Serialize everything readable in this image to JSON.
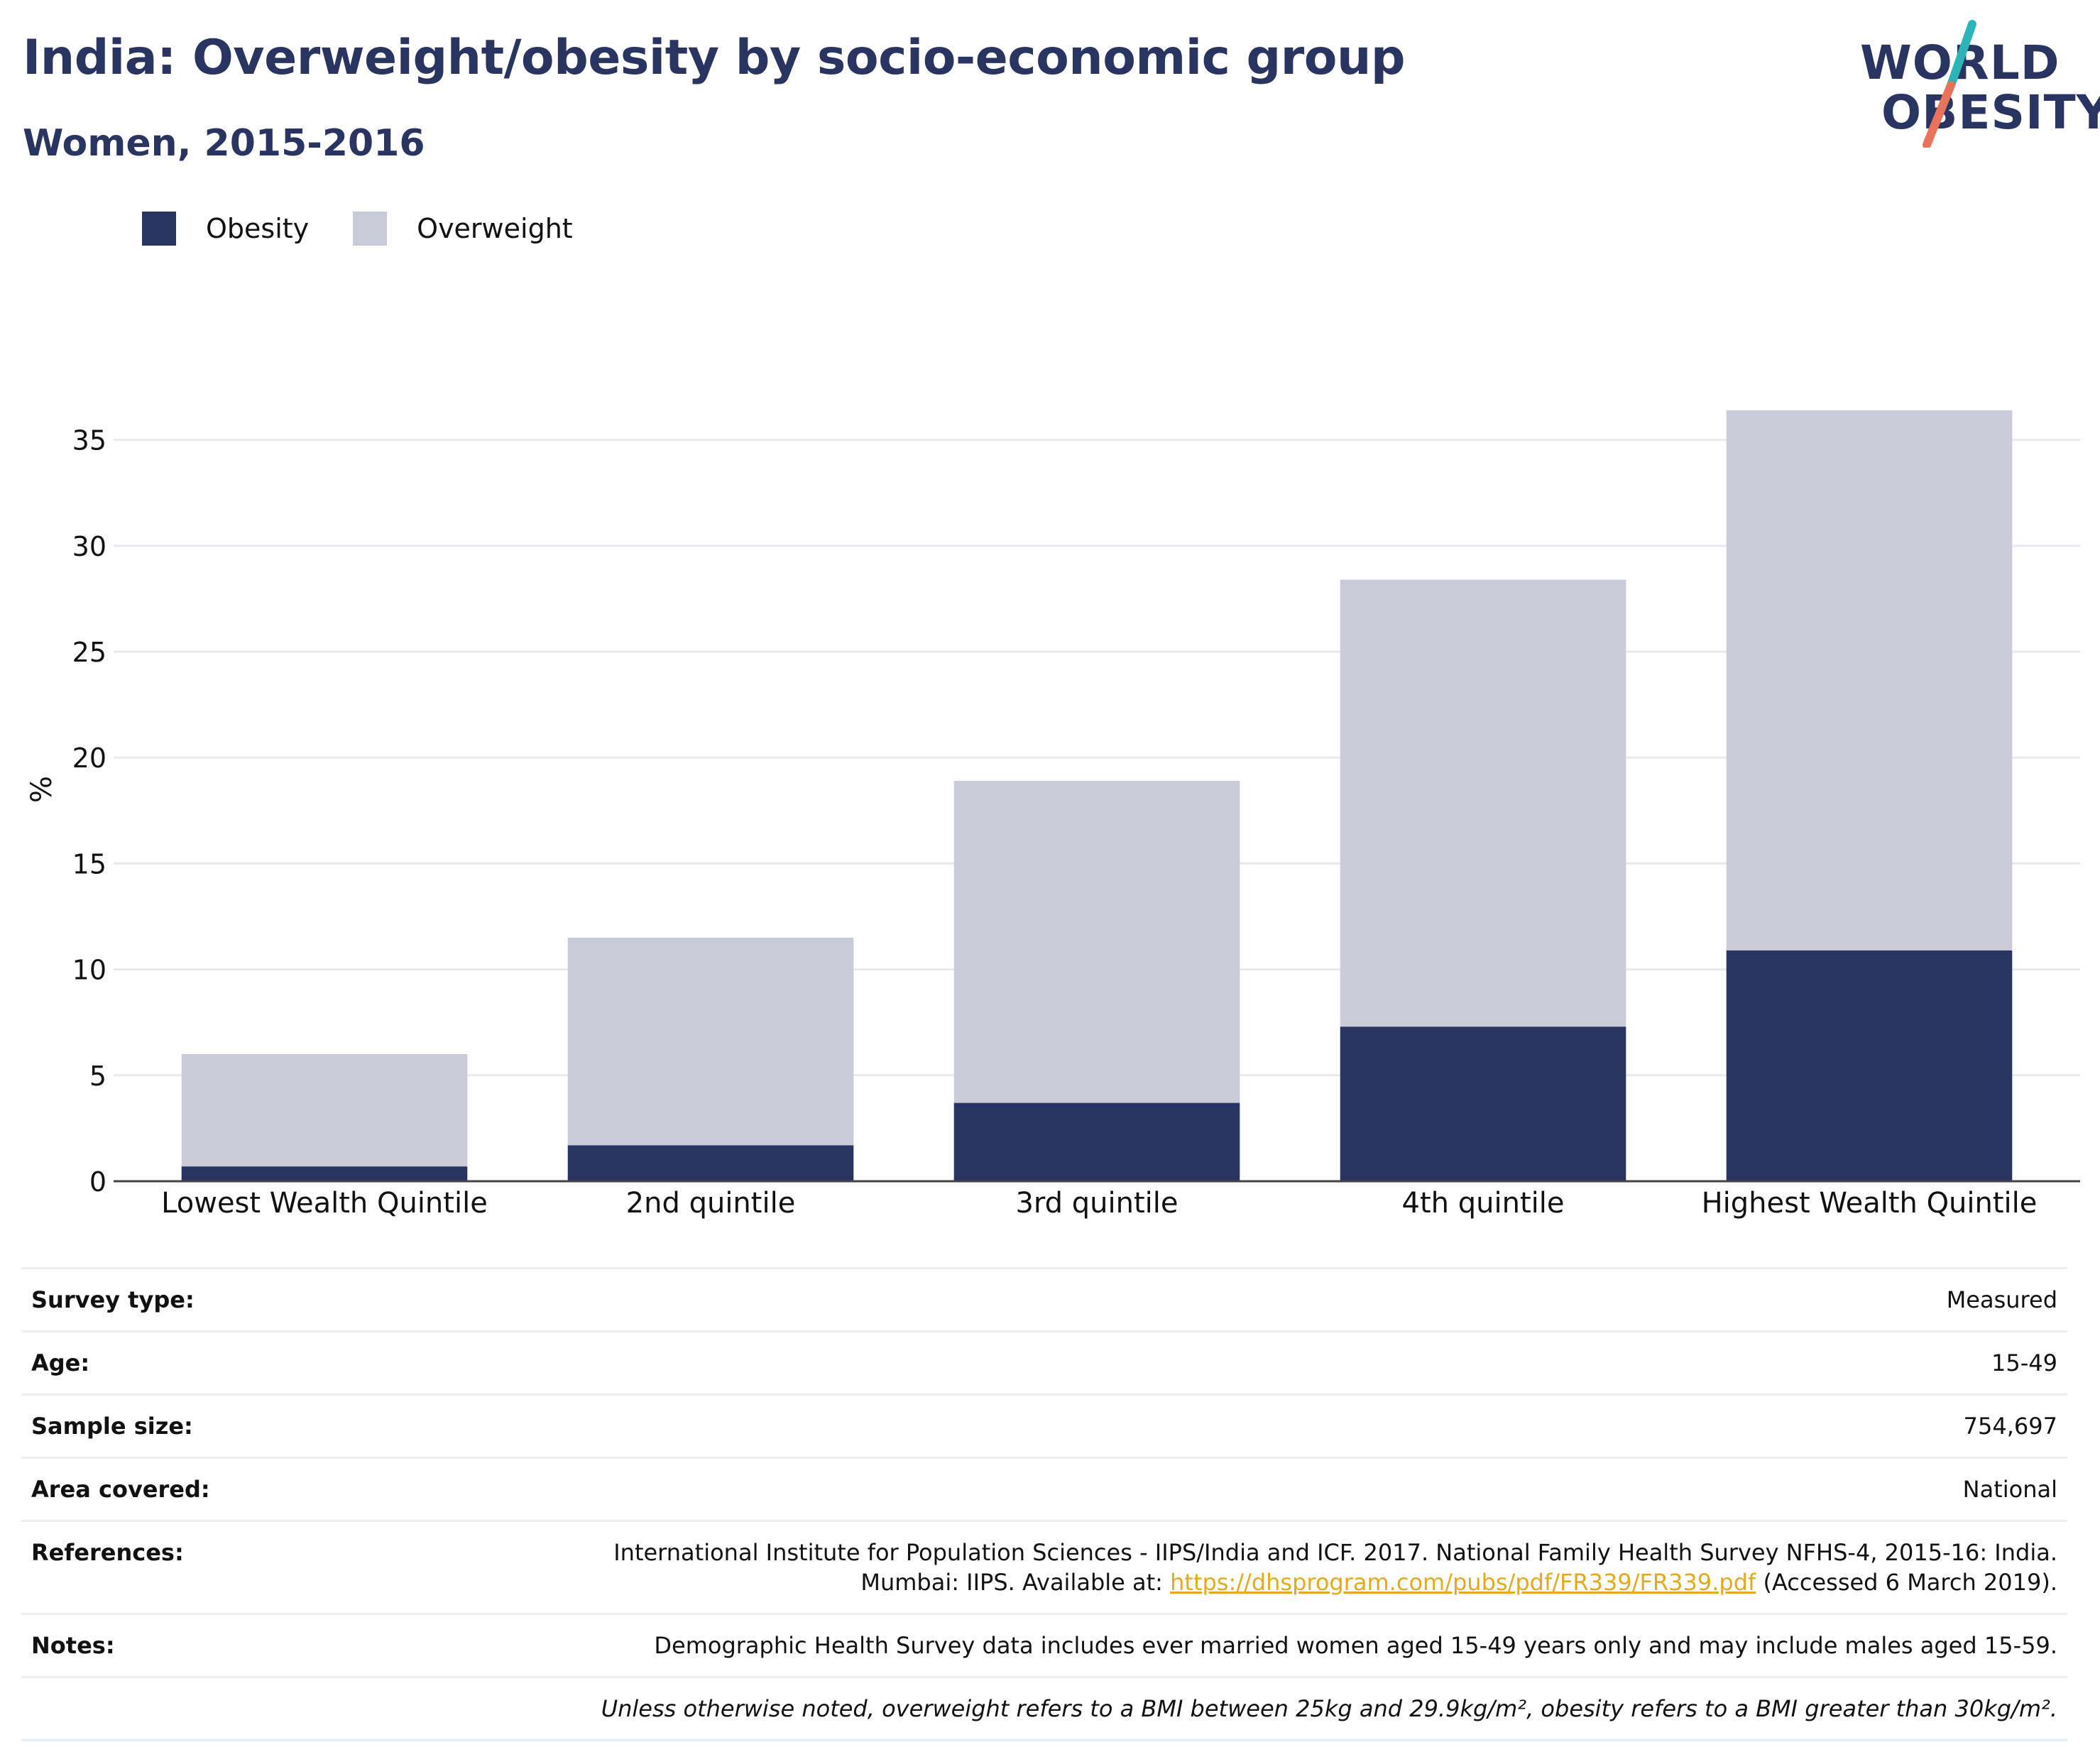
{
  "header": {
    "title": "India: Overweight/obesity by socio-economic group",
    "subtitle": "Women, 2015-2016"
  },
  "logo": {
    "line1": "WORLD",
    "line2": "OBESITY",
    "accent_teal": "#2bb5b8",
    "accent_coral": "#e8735a"
  },
  "legend": [
    {
      "label": "Obesity",
      "color": "#2a3461"
    },
    {
      "label": "Overweight",
      "color": "#cacbd8"
    }
  ],
  "chart_data": {
    "type": "bar",
    "stacked": true,
    "categories": [
      "Lowest Wealth Quintile",
      "2nd quintile",
      "3rd quintile",
      "4th quintile",
      "Highest Wealth Quintile"
    ],
    "series": [
      {
        "name": "Obesity",
        "color": "#2a3461",
        "values": [
          0.7,
          1.7,
          3.7,
          7.3,
          10.9
        ]
      },
      {
        "name": "Overweight",
        "color": "#cacbd8",
        "values": [
          5.3,
          9.8,
          15.2,
          21.1,
          25.5
        ]
      }
    ],
    "totals": [
      6.0,
      11.5,
      18.9,
      28.4,
      36.4
    ],
    "ylabel": "%",
    "ylim": [
      0,
      37
    ],
    "yticks": [
      0,
      5,
      10,
      15,
      20,
      25,
      30,
      35
    ],
    "grid": true,
    "legend_position": "top-left"
  },
  "info": {
    "survey_type": {
      "label": "Survey type:",
      "value": "Measured"
    },
    "age": {
      "label": "Age:",
      "value": "15-49"
    },
    "sample_size": {
      "label": "Sample size:",
      "value": "754,697"
    },
    "area": {
      "label": "Area covered:",
      "value": "National"
    },
    "references": {
      "label": "References:",
      "line1": "International Institute for Population Sciences - IIPS/India and ICF. 2017. National Family Health Survey NFHS-4, 2015-16: India.",
      "line2_prefix": "Mumbai: IIPS. Available at: ",
      "link": "https://dhsprogram.com/pubs/pdf/FR339/FR339.pdf",
      "line2_suffix": " (Accessed 6 March 2019)."
    },
    "notes": {
      "label": "Notes:",
      "value": "Demographic Health Survey data includes ever married women aged 15-49 years only and may include males aged 15-59."
    },
    "definition": "Unless otherwise noted, overweight refers to a BMI between 25kg and 29.9kg/m², obesity refers to a BMI greater than 30kg/m²."
  }
}
